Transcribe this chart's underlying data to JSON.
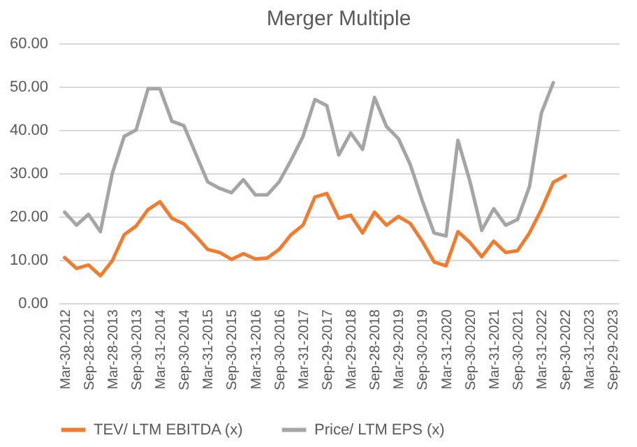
{
  "chart_data": {
    "type": "line",
    "title": "Merger Multiple",
    "categories": [
      "Mar-30-2012",
      null,
      "Sep-28-2012",
      null,
      "Mar-28-2013",
      null,
      "Sep-30-2013",
      null,
      "Mar-31-2014",
      null,
      "Sep-30-2014",
      null,
      "Mar-31-2015",
      null,
      "Sep-30-2015",
      null,
      "Mar-31-2016",
      null,
      "Sep-30-2016",
      null,
      "Mar-31-2017",
      null,
      "Sep-29-2017",
      null,
      "Mar-29-2018",
      null,
      "Sep-28-2018",
      null,
      "Mar-29-2019",
      null,
      "Sep-30-2019",
      null,
      "Mar-31-2020",
      null,
      "Sep-30-2020",
      null,
      "Mar-31-2021",
      null,
      "Sep-30-2021",
      null,
      "Mar-31-2022",
      null,
      "Sep-30-2022",
      null,
      "Mar-31-2023",
      null,
      "Sep-29-2023"
    ],
    "series": [
      {
        "name": "TEV/ LTM EBITDA (x)",
        "color": "#ed7d31",
        "values": [
          10.5,
          8,
          8.8,
          6.3,
          9.8,
          15.8,
          17.8,
          21.6,
          23.4,
          19.6,
          18.3,
          15.5,
          12.4,
          11.7,
          10.1,
          11.4,
          10.2,
          10.4,
          12.4,
          15.8,
          18,
          24.5,
          25.3,
          19.6,
          20.3,
          16.2,
          21,
          18,
          20,
          18.4,
          14.3,
          9.5,
          8.6,
          16.5,
          14,
          10.7,
          14.3,
          11.7,
          12.1,
          16.2,
          21.6,
          27.9,
          29.4,
          null,
          null,
          null,
          null
        ]
      },
      {
        "name": "Price/ LTM EPS (x)",
        "color": "#a5a5a5",
        "values": [
          21,
          18,
          20.5,
          16.5,
          30,
          38.5,
          40,
          49.5,
          49.5,
          42,
          41,
          34.5,
          28,
          26.5,
          25.5,
          28.5,
          25,
          25,
          28,
          33,
          38.5,
          47,
          45.6,
          34.2,
          39.3,
          35.5,
          47.5,
          40.8,
          38,
          32,
          23.7,
          16.2,
          15.5,
          37.6,
          28.2,
          16.8,
          21.8,
          18,
          19.3,
          26.9,
          43.9,
          50.9,
          null,
          null,
          null,
          null,
          null
        ]
      }
    ],
    "ylim": [
      0,
      60
    ],
    "yticks": [
      {
        "value": 0,
        "label": "0.00"
      },
      {
        "value": 10,
        "label": "10.00"
      },
      {
        "value": 20,
        "label": "20.00"
      },
      {
        "value": 30,
        "label": "30.00"
      },
      {
        "value": 40,
        "label": "40.00"
      },
      {
        "value": 50,
        "label": "50.00"
      },
      {
        "value": 60,
        "label": "60.00"
      }
    ],
    "grid": "y",
    "legend": "bottom",
    "line_style": "solid"
  }
}
